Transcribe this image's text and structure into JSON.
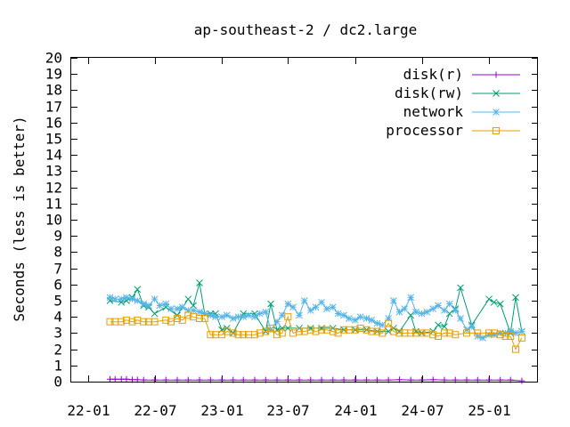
{
  "chart_data": {
    "type": "line",
    "title": "ap-southeast-2 / dc2.large",
    "ylabel": "Seconds (less is better)",
    "xlabel": "",
    "ylim": [
      0,
      20
    ],
    "yticks": [
      0,
      1,
      2,
      3,
      4,
      5,
      6,
      7,
      8,
      9,
      10,
      11,
      12,
      13,
      14,
      15,
      16,
      17,
      18,
      19,
      20
    ],
    "xlim": [
      "2021-11-15",
      "2025-05-15"
    ],
    "xticks": [
      "22-01",
      "22-07",
      "23-01",
      "23-07",
      "24-01",
      "24-07",
      "25-01"
    ],
    "xtick_dates": [
      "2022-01-01",
      "2022-07-01",
      "2023-01-01",
      "2023-07-01",
      "2024-01-01",
      "2024-07-01",
      "2025-01-01"
    ],
    "legend_position": "top-right",
    "series": [
      {
        "name": "disk(r)",
        "color": "#9400d3",
        "marker": "plus",
        "x": [
          "2022-03-01",
          "2022-03-15",
          "2022-04-01",
          "2022-04-15",
          "2022-05-01",
          "2022-05-15",
          "2022-06-01",
          "2022-07-01",
          "2022-08-01",
          "2022-09-01",
          "2022-10-01",
          "2022-11-01",
          "2022-12-01",
          "2023-01-01",
          "2023-02-01",
          "2023-03-01",
          "2023-04-01",
          "2023-05-01",
          "2023-06-01",
          "2023-07-01",
          "2023-08-01",
          "2023-09-01",
          "2023-10-01",
          "2023-11-01",
          "2023-12-01",
          "2024-01-01",
          "2024-02-01",
          "2024-03-01",
          "2024-04-01",
          "2024-05-01",
          "2024-06-01",
          "2024-07-01",
          "2024-08-01",
          "2024-09-01",
          "2024-10-01",
          "2024-11-01",
          "2024-12-01",
          "2025-01-01",
          "2025-02-01",
          "2025-03-01",
          "2025-04-01"
        ],
        "values": [
          0.15,
          0.15,
          0.15,
          0.15,
          0.12,
          0.12,
          0.1,
          0.1,
          0.1,
          0.1,
          0.1,
          0.1,
          0.1,
          0.1,
          0.1,
          0.1,
          0.1,
          0.1,
          0.1,
          0.1,
          0.1,
          0.1,
          0.1,
          0.1,
          0.1,
          0.1,
          0.1,
          0.1,
          0.1,
          0.12,
          0.1,
          0.1,
          0.12,
          0.1,
          0.1,
          0.1,
          0.1,
          0.1,
          0.1,
          0.1,
          0.05
        ]
      },
      {
        "name": "disk(rw)",
        "color": "#009e73",
        "marker": "x",
        "x": [
          "2022-03-01",
          "2022-04-01",
          "2022-04-15",
          "2022-05-01",
          "2022-05-15",
          "2022-06-01",
          "2022-06-15",
          "2022-07-01",
          "2022-08-01",
          "2022-09-01",
          "2022-10-01",
          "2022-10-15",
          "2022-11-01",
          "2022-11-15",
          "2022-12-01",
          "2022-12-15",
          "2023-01-01",
          "2023-01-15",
          "2023-02-01",
          "2023-03-01",
          "2023-04-01",
          "2023-05-01",
          "2023-05-15",
          "2023-06-01",
          "2023-06-15",
          "2023-07-01",
          "2023-08-01",
          "2023-09-01",
          "2023-10-01",
          "2023-11-01",
          "2023-12-01",
          "2024-01-01",
          "2024-02-01",
          "2024-03-01",
          "2024-04-01",
          "2024-04-15",
          "2024-05-01",
          "2024-06-01",
          "2024-06-15",
          "2024-07-01",
          "2024-08-01",
          "2024-08-15",
          "2024-09-01",
          "2024-09-15",
          "2024-10-01",
          "2024-10-15",
          "2024-11-15",
          "2025-01-01",
          "2025-01-15",
          "2025-02-01",
          "2025-03-01",
          "2025-03-15",
          "2025-04-01"
        ],
        "values": [
          5.0,
          4.9,
          5.0,
          5.2,
          5.7,
          4.7,
          4.6,
          4.2,
          4.6,
          4.1,
          5.1,
          4.7,
          6.1,
          4.2,
          4.2,
          4.2,
          3.2,
          3.3,
          3.0,
          4.2,
          4.2,
          3.1,
          4.8,
          3.2,
          3.3,
          3.3,
          3.3,
          3.3,
          3.3,
          3.3,
          3.2,
          3.2,
          3.2,
          3.1,
          3.1,
          3.3,
          3.1,
          4.1,
          3.1,
          3.0,
          3.1,
          3.5,
          3.4,
          4.2,
          4.5,
          5.8,
          3.5,
          5.1,
          4.9,
          4.8,
          3.0,
          5.2,
          3.1
        ]
      },
      {
        "name": "network",
        "color": "#56b4e9",
        "marker": "star",
        "x": [
          "2022-03-01",
          "2022-03-15",
          "2022-04-01",
          "2022-04-15",
          "2022-05-01",
          "2022-05-15",
          "2022-06-01",
          "2022-06-15",
          "2022-07-01",
          "2022-07-15",
          "2022-08-01",
          "2022-08-15",
          "2022-09-01",
          "2022-09-15",
          "2022-10-01",
          "2022-10-15",
          "2022-11-01",
          "2022-11-15",
          "2022-12-01",
          "2022-12-15",
          "2023-01-01",
          "2023-01-15",
          "2023-02-01",
          "2023-02-15",
          "2023-03-01",
          "2023-03-15",
          "2023-04-01",
          "2023-04-15",
          "2023-05-01",
          "2023-05-15",
          "2023-06-01",
          "2023-06-15",
          "2023-07-01",
          "2023-07-15",
          "2023-08-01",
          "2023-08-15",
          "2023-09-01",
          "2023-09-15",
          "2023-10-01",
          "2023-10-15",
          "2023-11-01",
          "2023-11-15",
          "2023-12-01",
          "2023-12-15",
          "2024-01-01",
          "2024-01-15",
          "2024-02-01",
          "2024-02-15",
          "2024-03-01",
          "2024-03-15",
          "2024-04-01",
          "2024-04-15",
          "2024-05-01",
          "2024-05-15",
          "2024-06-01",
          "2024-06-15",
          "2024-07-01",
          "2024-07-15",
          "2024-08-01",
          "2024-08-15",
          "2024-09-01",
          "2024-09-15",
          "2024-10-01",
          "2024-10-15",
          "2024-11-01",
          "2024-11-15",
          "2024-12-01",
          "2024-12-15",
          "2025-01-01",
          "2025-01-15",
          "2025-02-01",
          "2025-02-15",
          "2025-03-01",
          "2025-03-15",
          "2025-04-01"
        ],
        "values": [
          5.2,
          5.1,
          5.1,
          5.2,
          5.1,
          5.0,
          4.8,
          4.7,
          5.1,
          4.7,
          4.8,
          4.5,
          4.5,
          4.6,
          4.4,
          4.4,
          4.3,
          4.2,
          4.1,
          4.0,
          4.0,
          4.1,
          3.9,
          4.0,
          4.0,
          4.1,
          4.0,
          4.2,
          4.3,
          3.2,
          3.7,
          4.1,
          4.8,
          4.6,
          4.1,
          5.0,
          4.4,
          4.6,
          4.9,
          4.5,
          4.6,
          4.2,
          4.1,
          3.9,
          3.8,
          4.0,
          3.9,
          3.8,
          3.6,
          3.5,
          3.9,
          5.0,
          4.3,
          4.5,
          5.2,
          4.3,
          4.2,
          4.3,
          4.5,
          4.7,
          4.4,
          4.8,
          4.4,
          3.9,
          3.2,
          3.4,
          2.8,
          2.7,
          2.9,
          2.9,
          3.0,
          3.0,
          3.1,
          3.0,
          3.1
        ]
      },
      {
        "name": "processor",
        "color": "#e69f00",
        "marker": "square",
        "x": [
          "2022-03-01",
          "2022-03-15",
          "2022-04-01",
          "2022-04-15",
          "2022-05-01",
          "2022-05-15",
          "2022-06-01",
          "2022-06-15",
          "2022-07-01",
          "2022-08-01",
          "2022-08-15",
          "2022-09-01",
          "2022-09-15",
          "2022-10-01",
          "2022-10-15",
          "2022-11-01",
          "2022-11-15",
          "2022-12-01",
          "2022-12-15",
          "2023-01-01",
          "2023-01-15",
          "2023-02-01",
          "2023-02-15",
          "2023-03-01",
          "2023-03-15",
          "2023-04-01",
          "2023-04-15",
          "2023-05-01",
          "2023-05-15",
          "2023-06-01",
          "2023-06-15",
          "2023-07-01",
          "2023-07-15",
          "2023-08-01",
          "2023-08-15",
          "2023-09-01",
          "2023-09-15",
          "2023-10-01",
          "2023-10-15",
          "2023-11-01",
          "2023-11-15",
          "2023-12-01",
          "2023-12-15",
          "2024-01-01",
          "2024-01-15",
          "2024-02-01",
          "2024-02-15",
          "2024-03-01",
          "2024-03-15",
          "2024-04-01",
          "2024-04-15",
          "2024-05-01",
          "2024-05-15",
          "2024-06-01",
          "2024-06-15",
          "2024-07-01",
          "2024-07-15",
          "2024-08-01",
          "2024-08-15",
          "2024-09-01",
          "2024-09-15",
          "2024-10-01",
          "2024-11-01",
          "2024-12-01",
          "2025-01-01",
          "2025-01-15",
          "2025-02-01",
          "2025-02-15",
          "2025-03-01",
          "2025-03-15",
          "2025-04-01"
        ],
        "values": [
          3.7,
          3.7,
          3.7,
          3.8,
          3.7,
          3.8,
          3.7,
          3.7,
          3.7,
          3.8,
          3.7,
          3.9,
          3.8,
          4.1,
          4.0,
          3.9,
          3.9,
          2.9,
          2.9,
          2.9,
          3.1,
          3.0,
          2.9,
          2.9,
          2.9,
          2.9,
          3.0,
          3.1,
          3.3,
          2.9,
          3.0,
          4.0,
          3.0,
          3.1,
          3.1,
          3.2,
          3.1,
          3.2,
          3.2,
          3.1,
          3.0,
          3.2,
          3.2,
          3.2,
          3.3,
          3.2,
          3.1,
          3.1,
          3.0,
          3.6,
          3.1,
          3.0,
          3.0,
          3.0,
          3.0,
          3.0,
          3.0,
          2.9,
          2.8,
          3.0,
          3.0,
          2.9,
          3.0,
          3.0,
          3.0,
          3.0,
          2.9,
          2.8,
          2.8,
          2.0,
          2.7
        ]
      }
    ]
  }
}
